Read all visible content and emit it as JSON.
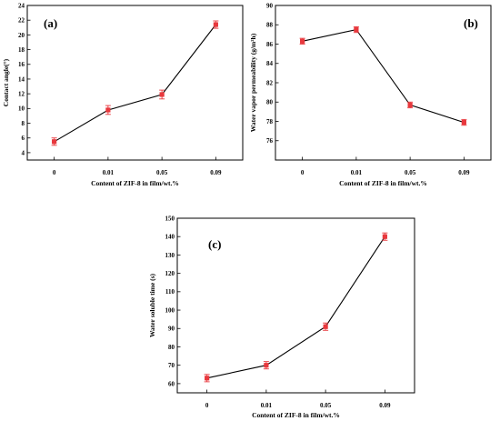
{
  "colors": {
    "marker": "#e8383d",
    "line": "#000000",
    "axis": "#000000"
  },
  "chart_data": [
    {
      "id": "a",
      "type": "line",
      "panel_label": "(a)",
      "title": "",
      "xlabel": "Content of ZIF-8 in film/wt.%",
      "ylabel": "Contact angle(°)",
      "categories": [
        "0",
        "0.01",
        "0.05",
        "0.09"
      ],
      "values": [
        5.5,
        9.8,
        11.9,
        21.4
      ],
      "errors": [
        0.5,
        0.6,
        0.6,
        0.5
      ],
      "ylim": [
        3,
        24
      ],
      "yticks": [
        4,
        6,
        8,
        10,
        12,
        14,
        16,
        18,
        20,
        22,
        24
      ],
      "ytick_labels": [
        "4",
        "6",
        "8",
        "10",
        "12",
        "14",
        "16",
        "18",
        "20",
        "22",
        "24"
      ],
      "legend": false,
      "grid": false
    },
    {
      "id": "b",
      "type": "line",
      "panel_label": "(b)",
      "title": "",
      "xlabel": "Content of ZIF-8 in film/wt.%",
      "ylabel": "Water vapor permeability (g/m²h)",
      "categories": [
        "0",
        "0.01",
        "0.05",
        "0.09"
      ],
      "values": [
        86.3,
        87.5,
        79.7,
        77.9
      ],
      "errors": [
        0.3,
        0.3,
        0.3,
        0.3
      ],
      "ylim": [
        74,
        90
      ],
      "yticks": [
        76,
        78,
        80,
        82,
        84,
        86,
        88,
        90
      ],
      "ytick_labels": [
        "76",
        "78",
        "80",
        "82",
        "84",
        "86",
        "88",
        "90"
      ],
      "legend": false,
      "grid": false
    },
    {
      "id": "c",
      "type": "line",
      "panel_label": "(c)",
      "title": "",
      "xlabel": "Content of ZIF-8 in film/wt.%",
      "ylabel": "Water soluble time (s)",
      "categories": [
        "0",
        "0.01",
        "0.05",
        "0.09"
      ],
      "values": [
        63,
        70,
        91,
        140
      ],
      "errors": [
        2,
        2,
        2,
        2
      ],
      "ylim": [
        55,
        150
      ],
      "yticks": [
        60,
        70,
        80,
        90,
        100,
        110,
        120,
        130,
        140,
        150
      ],
      "ytick_labels": [
        "60",
        "70",
        "80",
        "90",
        "100",
        "110",
        "120",
        "130",
        "140",
        "150"
      ],
      "legend": false,
      "grid": false
    }
  ]
}
